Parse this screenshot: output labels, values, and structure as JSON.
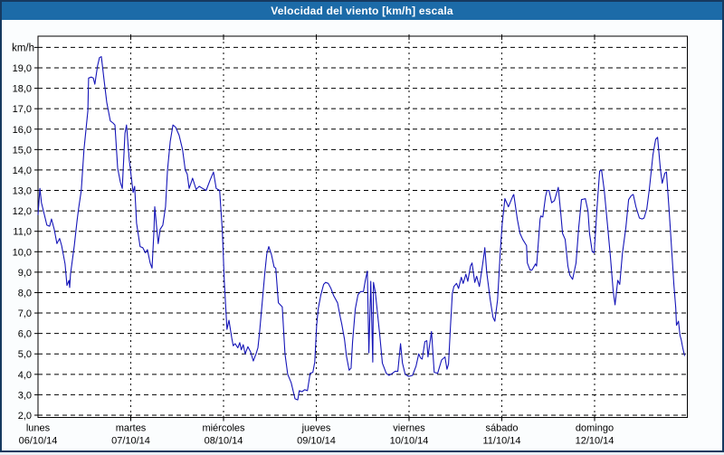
{
  "window": {
    "title": "Velocidad del viento [km/h] escala"
  },
  "colors": {
    "titlebar_bg": "#1c6ba8",
    "titlebar_text": "#ffffff",
    "window_border": "#16395f",
    "window_bg": "#fbfdfe",
    "plot_bg": "#ffffff",
    "grid_color": "#000000",
    "axis_color": "#000000",
    "label_color": "#000000",
    "line_color": "#1515b8"
  },
  "chart_data": {
    "type": "line",
    "title": "Velocidad del viento [km/h] escala",
    "unit_label": "km/h",
    "grid": "dashed",
    "legend": "none",
    "y_axis": {
      "min": 2.0,
      "max": 20.0,
      "step": 1.0,
      "first_labeled": 2.0,
      "last_labeled": 19.0,
      "decimal_style": "comma",
      "tick_labels": [
        "2,0",
        "3,0",
        "4,0",
        "5,0",
        "6,0",
        "7,0",
        "8,0",
        "9,0",
        "10,0",
        "11,0",
        "12,0",
        "13,0",
        "14,0",
        "15,0",
        "16,0",
        "17,0",
        "18,0",
        "19,0"
      ]
    },
    "x_axis": {
      "total_hours": 168,
      "days": [
        {
          "name": "lunes",
          "date": "06/10/14"
        },
        {
          "name": "martes",
          "date": "07/10/14"
        },
        {
          "name": "miércoles",
          "date": "08/10/14"
        },
        {
          "name": "jueves",
          "date": "09/10/14"
        },
        {
          "name": "viernes",
          "date": "10/10/14"
        },
        {
          "name": "sábado",
          "date": "11/10/14"
        },
        {
          "name": "domingo",
          "date": "12/10/14"
        }
      ]
    },
    "series": [
      {
        "name": "Velocidad del viento",
        "unit": "km/h",
        "x_unit": "hours_from_monday_00h",
        "points": [
          [
            0,
            11.8
          ],
          [
            0.5,
            13.1
          ],
          [
            0.9,
            12.4
          ],
          [
            1.4,
            12.0
          ],
          [
            2.3,
            11.3
          ],
          [
            3.0,
            11.25
          ],
          [
            3.5,
            11.6
          ],
          [
            4.2,
            11.1
          ],
          [
            4.9,
            10.4
          ],
          [
            5.6,
            10.65
          ],
          [
            6.1,
            10.3
          ],
          [
            7.0,
            9.4
          ],
          [
            7.5,
            8.35
          ],
          [
            8.0,
            8.6
          ],
          [
            8.2,
            8.25
          ],
          [
            8.4,
            8.9
          ],
          [
            9.4,
            10.3
          ],
          [
            10.1,
            11.5
          ],
          [
            10.5,
            12.1
          ],
          [
            11.2,
            13.0
          ],
          [
            11.9,
            15.0
          ],
          [
            12.9,
            16.9
          ],
          [
            13.1,
            18.5
          ],
          [
            13.8,
            18.55
          ],
          [
            14.3,
            18.5
          ],
          [
            14.7,
            18.2
          ],
          [
            15.4,
            19.1
          ],
          [
            15.9,
            19.5
          ],
          [
            16.4,
            19.55
          ],
          [
            17.1,
            18.4
          ],
          [
            17.8,
            17.3
          ],
          [
            18.7,
            16.4
          ],
          [
            19.4,
            16.3
          ],
          [
            19.9,
            16.2
          ],
          [
            20.6,
            14.1
          ],
          [
            21.3,
            13.4
          ],
          [
            21.8,
            13.1
          ],
          [
            22.5,
            15.8
          ],
          [
            22.9,
            16.2
          ],
          [
            23.6,
            14.5
          ],
          [
            24.6,
            12.9
          ],
          [
            25.0,
            13.2
          ],
          [
            25.5,
            11.4
          ],
          [
            26.4,
            10.25
          ],
          [
            27.1,
            10.2
          ],
          [
            27.8,
            9.95
          ],
          [
            28.3,
            10.1
          ],
          [
            29.0,
            9.45
          ],
          [
            29.5,
            9.2
          ],
          [
            30.0,
            11.0
          ],
          [
            30.2,
            12.2
          ],
          [
            30.7,
            11.2
          ],
          [
            31.1,
            10.4
          ],
          [
            31.6,
            11.1
          ],
          [
            32.3,
            11.3
          ],
          [
            33.0,
            12.2
          ],
          [
            33.5,
            14.0
          ],
          [
            34.2,
            15.4
          ],
          [
            34.9,
            16.2
          ],
          [
            35.6,
            16.1
          ],
          [
            36.5,
            15.7
          ],
          [
            37.4,
            15.0
          ],
          [
            38.1,
            14.0
          ],
          [
            38.6,
            13.8
          ],
          [
            39.1,
            13.1
          ],
          [
            40.0,
            13.6
          ],
          [
            40.9,
            13.05
          ],
          [
            41.7,
            13.2
          ],
          [
            42.6,
            13.1
          ],
          [
            43.5,
            13.0
          ],
          [
            44.5,
            13.5
          ],
          [
            45.4,
            13.9
          ],
          [
            46.1,
            13.1
          ],
          [
            47.0,
            13.0
          ],
          [
            47.7,
            11.0
          ],
          [
            48.2,
            8.5
          ],
          [
            48.9,
            6.2
          ],
          [
            49.4,
            6.65
          ],
          [
            50.1,
            5.8
          ],
          [
            50.5,
            5.4
          ],
          [
            51.0,
            5.5
          ],
          [
            51.7,
            5.3
          ],
          [
            52.2,
            5.55
          ],
          [
            52.6,
            5.2
          ],
          [
            53.1,
            5.45
          ],
          [
            53.6,
            5.0
          ],
          [
            54.3,
            5.35
          ],
          [
            55.0,
            5.1
          ],
          [
            55.7,
            4.65
          ],
          [
            56.4,
            5.0
          ],
          [
            56.9,
            5.3
          ],
          [
            57.3,
            6.0
          ],
          [
            58.0,
            7.5
          ],
          [
            58.7,
            9.0
          ],
          [
            59.2,
            9.9
          ],
          [
            59.7,
            10.25
          ],
          [
            60.4,
            9.85
          ],
          [
            61.1,
            9.25
          ],
          [
            61.5,
            9.2
          ],
          [
            62.2,
            7.5
          ],
          [
            63.2,
            7.3
          ],
          [
            63.9,
            5.0
          ],
          [
            64.6,
            4.0
          ],
          [
            65.5,
            3.6
          ],
          [
            66.5,
            2.8
          ],
          [
            67.2,
            2.75
          ],
          [
            67.6,
            3.2
          ],
          [
            68.3,
            3.15
          ],
          [
            69.0,
            3.25
          ],
          [
            69.7,
            3.2
          ],
          [
            70.4,
            4.05
          ],
          [
            71.1,
            4.1
          ],
          [
            71.6,
            4.6
          ],
          [
            72.1,
            6.4
          ],
          [
            72.5,
            7.2
          ],
          [
            73.2,
            7.9
          ],
          [
            73.9,
            8.4
          ],
          [
            74.4,
            8.5
          ],
          [
            75.1,
            8.45
          ],
          [
            75.8,
            8.2
          ],
          [
            76.5,
            7.85
          ],
          [
            77.5,
            7.5
          ],
          [
            78.2,
            6.8
          ],
          [
            78.6,
            6.45
          ],
          [
            79.3,
            5.7
          ],
          [
            79.8,
            4.9
          ],
          [
            80.5,
            4.2
          ],
          [
            81.0,
            4.3
          ],
          [
            81.4,
            5.6
          ],
          [
            82.1,
            7.2
          ],
          [
            82.8,
            7.9
          ],
          [
            83.5,
            8.05
          ],
          [
            84.2,
            8.05
          ],
          [
            84.7,
            8.6
          ],
          [
            85.2,
            9.05
          ],
          [
            85.6,
            5.05
          ],
          [
            86.1,
            8.55
          ],
          [
            86.6,
            4.6
          ],
          [
            86.8,
            8.5
          ],
          [
            87.3,
            8.0
          ],
          [
            87.8,
            7.05
          ],
          [
            88.5,
            5.75
          ],
          [
            89.1,
            4.55
          ],
          [
            90.1,
            4.05
          ],
          [
            90.8,
            3.95
          ],
          [
            91.7,
            4.05
          ],
          [
            92.4,
            4.15
          ],
          [
            93.1,
            4.15
          ],
          [
            93.8,
            5.5
          ],
          [
            94.3,
            4.55
          ],
          [
            95.0,
            4.0
          ],
          [
            95.9,
            3.9
          ],
          [
            96.9,
            3.95
          ],
          [
            97.8,
            4.4
          ],
          [
            98.5,
            5.0
          ],
          [
            99.0,
            4.8
          ],
          [
            99.4,
            4.75
          ],
          [
            100.1,
            5.6
          ],
          [
            100.6,
            5.65
          ],
          [
            100.9,
            4.85
          ],
          [
            101.8,
            6.1
          ],
          [
            102.5,
            4.1
          ],
          [
            103.4,
            4.05
          ],
          [
            104.4,
            4.7
          ],
          [
            105.3,
            4.85
          ],
          [
            105.8,
            4.25
          ],
          [
            106.2,
            4.5
          ],
          [
            106.7,
            6.3
          ],
          [
            107.2,
            7.95
          ],
          [
            107.6,
            8.3
          ],
          [
            108.3,
            8.45
          ],
          [
            108.8,
            8.2
          ],
          [
            109.5,
            8.75
          ],
          [
            110.0,
            8.45
          ],
          [
            110.7,
            8.9
          ],
          [
            111.2,
            8.55
          ],
          [
            111.9,
            9.3
          ],
          [
            112.3,
            9.45
          ],
          [
            113.0,
            8.5
          ],
          [
            113.5,
            8.8
          ],
          [
            114.2,
            8.3
          ],
          [
            114.9,
            9.2
          ],
          [
            115.4,
            9.9
          ],
          [
            115.6,
            10.2
          ],
          [
            116.1,
            9.0
          ],
          [
            117.0,
            7.65
          ],
          [
            117.7,
            6.8
          ],
          [
            118.2,
            6.6
          ],
          [
            118.9,
            7.65
          ],
          [
            119.6,
            10.0
          ],
          [
            120.1,
            11.35
          ],
          [
            120.8,
            12.6
          ],
          [
            121.7,
            12.2
          ],
          [
            122.9,
            12.75
          ],
          [
            123.1,
            12.8
          ],
          [
            124.0,
            11.6
          ],
          [
            124.7,
            10.9
          ],
          [
            125.4,
            10.6
          ],
          [
            126.4,
            10.3
          ],
          [
            126.6,
            9.45
          ],
          [
            127.3,
            9.1
          ],
          [
            127.8,
            9.1
          ],
          [
            128.7,
            9.4
          ],
          [
            129.0,
            9.3
          ],
          [
            129.9,
            11.6
          ],
          [
            130.1,
            11.75
          ],
          [
            130.6,
            11.7
          ],
          [
            131.3,
            12.7
          ],
          [
            131.7,
            13.0
          ],
          [
            132.2,
            13.0
          ],
          [
            132.9,
            12.4
          ],
          [
            133.6,
            12.5
          ],
          [
            134.6,
            13.15
          ],
          [
            135.3,
            11.8
          ],
          [
            135.7,
            10.9
          ],
          [
            136.4,
            10.6
          ],
          [
            137.1,
            9.3
          ],
          [
            137.6,
            8.85
          ],
          [
            138.3,
            8.65
          ],
          [
            139.2,
            9.45
          ],
          [
            139.9,
            11.2
          ],
          [
            140.6,
            12.55
          ],
          [
            141.6,
            12.6
          ],
          [
            142.3,
            12.0
          ],
          [
            142.7,
            10.9
          ],
          [
            143.4,
            10.0
          ],
          [
            143.9,
            9.95
          ],
          [
            144.6,
            12.1
          ],
          [
            145.3,
            13.95
          ],
          [
            145.8,
            14.0
          ],
          [
            146.5,
            13.0
          ],
          [
            147.4,
            11.2
          ],
          [
            148.1,
            9.75
          ],
          [
            148.8,
            8.1
          ],
          [
            149.3,
            7.4
          ],
          [
            150.0,
            8.6
          ],
          [
            150.5,
            8.4
          ],
          [
            151.2,
            9.9
          ],
          [
            152.1,
            11.2
          ],
          [
            152.8,
            12.55
          ],
          [
            153.5,
            12.75
          ],
          [
            154.0,
            12.8
          ],
          [
            154.7,
            12.2
          ],
          [
            155.6,
            11.65
          ],
          [
            156.3,
            11.6
          ],
          [
            156.8,
            11.65
          ],
          [
            157.5,
            12.1
          ],
          [
            158.2,
            13.1
          ],
          [
            159.1,
            14.75
          ],
          [
            159.8,
            15.5
          ],
          [
            160.3,
            15.6
          ],
          [
            161.0,
            14.1
          ],
          [
            161.5,
            13.35
          ],
          [
            162.2,
            13.85
          ],
          [
            162.6,
            13.9
          ],
          [
            163.3,
            12.0
          ],
          [
            163.8,
            10.5
          ],
          [
            164.5,
            8.4
          ],
          [
            165.0,
            7.25
          ],
          [
            165.2,
            6.4
          ],
          [
            165.7,
            6.6
          ],
          [
            166.1,
            5.9
          ],
          [
            166.4,
            5.7
          ],
          [
            166.8,
            5.3
          ],
          [
            167.3,
            4.9
          ]
        ]
      }
    ]
  }
}
